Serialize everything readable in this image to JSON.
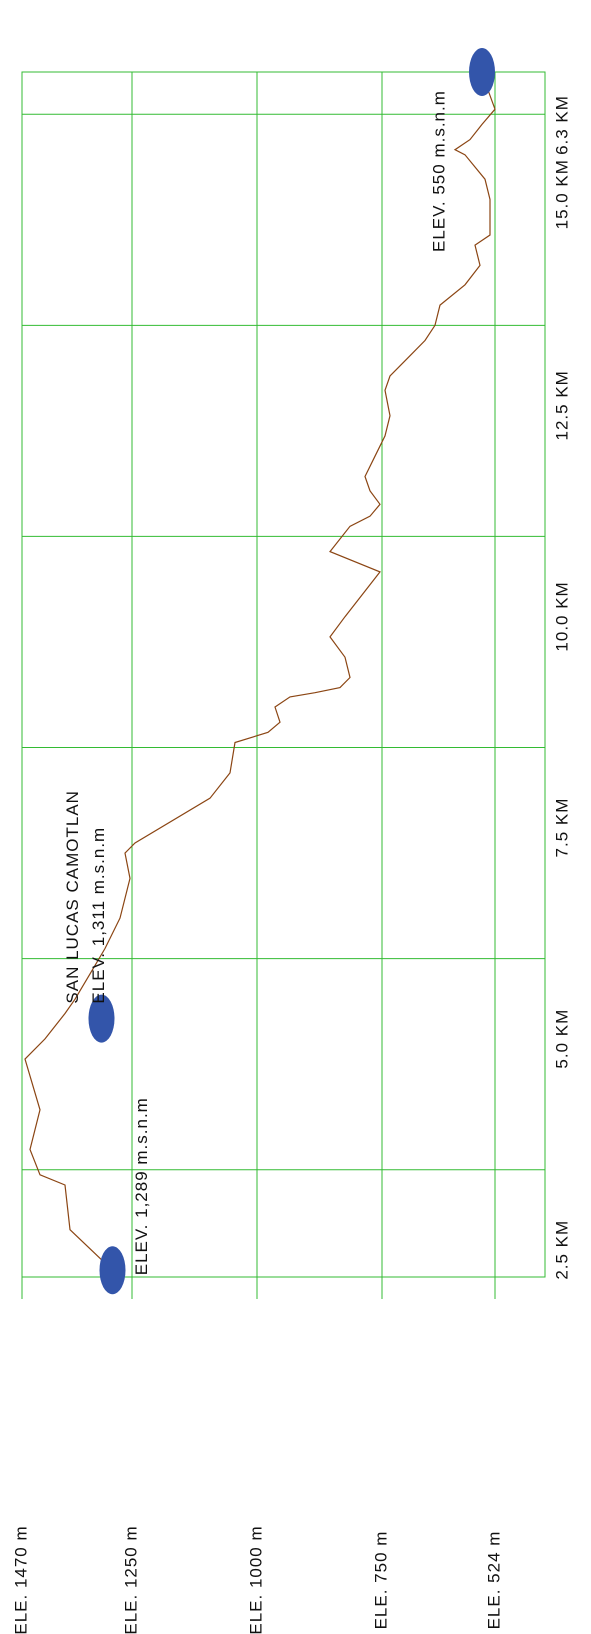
{
  "chart_data": {
    "type": "line",
    "x": [
      1.31,
      1.79,
      2.32,
      2.44,
      2.74,
      3.21,
      3.81,
      4.05,
      4.35,
      4.52,
      4.82,
      5.12,
      5.48,
      5.95,
      6.25,
      6.37,
      6.9,
      7.2,
      7.56,
      7.68,
      7.8,
      7.98,
      8.1,
      8.15,
      8.21,
      8.33,
      8.57,
      8.81,
      9.05,
      9.58,
      9.82,
      10.12,
      10.24,
      10.38,
      10.54,
      10.71,
      10.95,
      11.19,
      11.43,
      11.73,
      11.9,
      12.08,
      12.32,
      12.5,
      12.74,
      12.98,
      13.21,
      13.45,
      13.57,
      13.99,
      14.23,
      14.52,
      14.58,
      14.7,
      14.88,
      15.06,
      15.48
    ],
    "series": [
      {
        "color": "#8b4513",
        "values": [
          1289,
          1374,
          1384,
          1434,
          1454,
          1434,
          1464,
          1424,
          1384,
          1364,
          1334,
          1304,
          1274,
          1254,
          1264,
          1244,
          1094,
          1054,
          1044,
          978,
          954,
          964,
          934,
          884,
          834,
          814,
          824,
          854,
          824,
          754,
          854,
          814,
          774,
          754,
          774,
          784,
          764,
          744,
          734,
          744,
          734,
          704,
          664,
          644,
          634,
          584,
          554,
          564,
          534,
          534,
          544,
          584,
          604,
          574,
          550,
          524,
          550
        ]
      }
    ],
    "xlim": [
      1.23,
      15.5
    ],
    "xticks": [
      {
        "value": 2.5,
        "label": "2.5 KM"
      },
      {
        "value": 5.0,
        "label": "5.0 KM"
      },
      {
        "value": 7.5,
        "label": "7.5 KM"
      },
      {
        "value": 10.0,
        "label": "10.0 KM"
      },
      {
        "value": 12.5,
        "label": "12.5 KM"
      },
      {
        "value": 15.0,
        "label": "15.0 KM"
      }
    ],
    "ylim": [
      1470,
      424
    ],
    "yticks": [
      {
        "value": 1470,
        "label": "ELE. 1470 m"
      },
      {
        "value": 1250,
        "label": "ELE. 1250 m"
      },
      {
        "value": 1000,
        "label": "ELE. 1000 m"
      },
      {
        "value": 750,
        "label": "ELE. 750 m"
      },
      {
        "value": 524,
        "label": "ELE. 524 m"
      }
    ],
    "points": [
      {
        "x": 1.31,
        "y": 1289,
        "labels": [
          "ELEV. 1,289 m.s.n.m"
        ]
      },
      {
        "x": 4.29,
        "y": 1311,
        "labels": [
          "SAN LUCAS CAMOTLAN",
          "ELEV. 1,311 m.s.n.m"
        ]
      },
      {
        "x": 15.5,
        "y": 550,
        "labels": [
          "ELEV. 550 m.s.n.m"
        ]
      }
    ],
    "marker_color": "#3355aa",
    "annotations": [
      "6.3 KM"
    ],
    "grid": true
  }
}
